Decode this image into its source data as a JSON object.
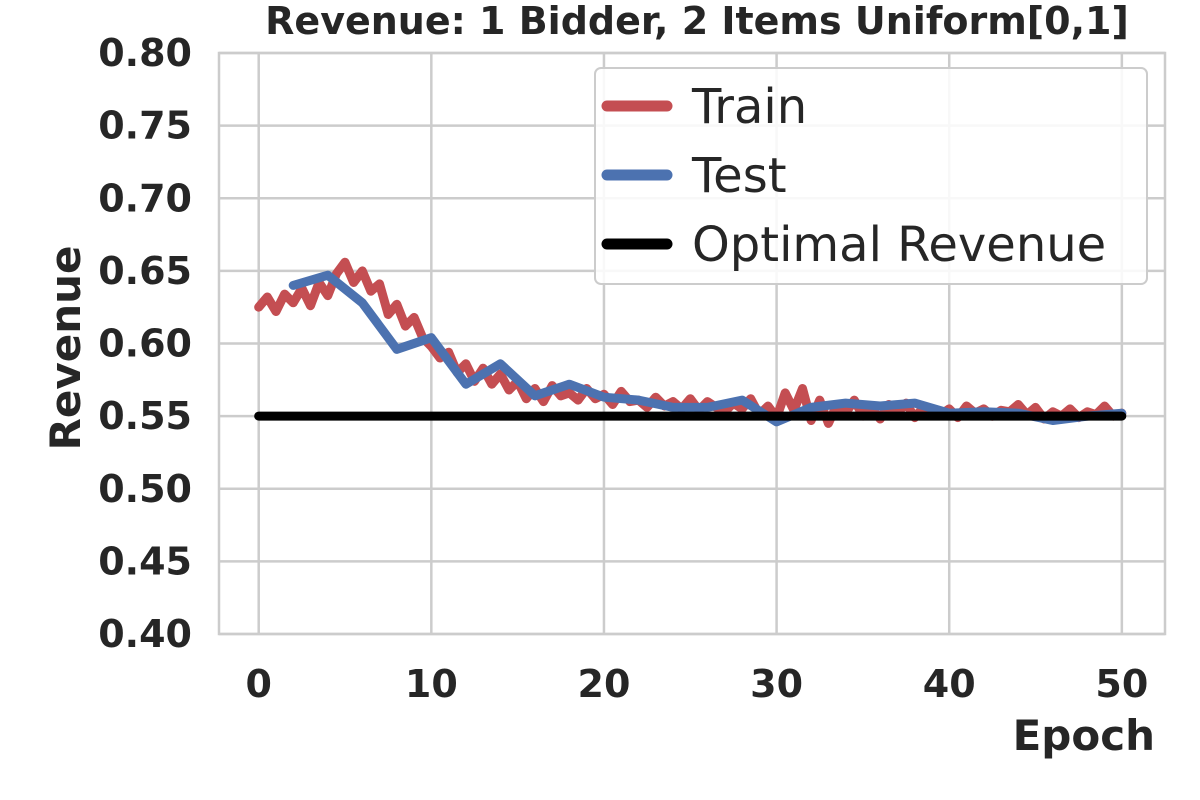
{
  "chart_data": {
    "type": "line",
    "title": "Revenue: 1 Bidder, 2 Items Uniform[0,1]",
    "xlabel": "Epoch",
    "ylabel": "Revenue",
    "xlim": [
      -2.3,
      52.5
    ],
    "ylim": [
      0.4,
      0.8
    ],
    "xticks": [
      "0",
      "10",
      "20",
      "30",
      "40",
      "50"
    ],
    "yticks": [
      "0.40",
      "0.45",
      "0.50",
      "0.55",
      "0.60",
      "0.65",
      "0.70",
      "0.75",
      "0.80"
    ],
    "grid": true,
    "legend_position": "top-right",
    "series": [
      {
        "name": "Train",
        "color": "#c44e52",
        "x": [
          0.0,
          0.5,
          1.0,
          1.5,
          2.0,
          2.5,
          3.0,
          3.5,
          4.0,
          4.5,
          5.0,
          5.5,
          6.0,
          6.5,
          7.0,
          7.5,
          8.0,
          8.5,
          9.0,
          9.5,
          10.0,
          10.5,
          11.0,
          11.5,
          12.0,
          12.5,
          13.0,
          13.5,
          14.0,
          14.5,
          15.0,
          15.5,
          16.0,
          16.5,
          17.0,
          17.5,
          18.0,
          18.5,
          19.0,
          19.5,
          20.0,
          20.5,
          21.0,
          21.5,
          22.0,
          22.5,
          23.0,
          23.5,
          24.0,
          24.5,
          25.0,
          25.5,
          26.0,
          26.5,
          27.0,
          27.5,
          28.0,
          28.5,
          29.0,
          29.5,
          30.0,
          30.5,
          31.0,
          31.5,
          32.0,
          32.5,
          33.0,
          33.5,
          34.0,
          34.5,
          35.0,
          35.5,
          36.0,
          36.5,
          37.0,
          37.5,
          38.0,
          38.5,
          39.0,
          39.5,
          40.0,
          40.5,
          41.0,
          41.5,
          42.0,
          42.5,
          43.0,
          43.5,
          44.0,
          44.5,
          45.0,
          45.5,
          46.0,
          46.5,
          47.0,
          47.5,
          48.0,
          48.5,
          49.0,
          49.5,
          50.0
        ],
        "values": [
          0.625,
          0.632,
          0.622,
          0.634,
          0.628,
          0.638,
          0.626,
          0.642,
          0.633,
          0.648,
          0.656,
          0.642,
          0.65,
          0.636,
          0.641,
          0.62,
          0.627,
          0.612,
          0.618,
          0.604,
          0.598,
          0.59,
          0.594,
          0.58,
          0.586,
          0.574,
          0.583,
          0.572,
          0.579,
          0.568,
          0.574,
          0.562,
          0.569,
          0.56,
          0.571,
          0.564,
          0.566,
          0.561,
          0.569,
          0.562,
          0.565,
          0.558,
          0.567,
          0.56,
          0.561,
          0.556,
          0.563,
          0.557,
          0.56,
          0.555,
          0.562,
          0.554,
          0.56,
          0.556,
          0.553,
          0.559,
          0.555,
          0.562,
          0.551,
          0.557,
          0.549,
          0.566,
          0.554,
          0.569,
          0.547,
          0.561,
          0.545,
          0.558,
          0.552,
          0.561,
          0.55,
          0.556,
          0.548,
          0.558,
          0.552,
          0.559,
          0.549,
          0.556,
          0.553,
          0.551,
          0.555,
          0.549,
          0.557,
          0.552,
          0.555,
          0.55,
          0.554,
          0.553,
          0.558,
          0.551,
          0.556,
          0.548,
          0.553,
          0.55,
          0.555,
          0.549,
          0.553,
          0.551,
          0.557,
          0.55,
          0.552
        ]
      },
      {
        "name": "Test",
        "color": "#4c72b0",
        "x": [
          2,
          4,
          6,
          8,
          10,
          12,
          14,
          16,
          18,
          20,
          22,
          24,
          26,
          28,
          30,
          32,
          34,
          36,
          38,
          40,
          42,
          44,
          46,
          48,
          50
        ],
        "values": [
          0.64,
          0.647,
          0.628,
          0.596,
          0.604,
          0.572,
          0.586,
          0.564,
          0.572,
          0.563,
          0.561,
          0.556,
          0.556,
          0.561,
          0.546,
          0.556,
          0.559,
          0.557,
          0.559,
          0.552,
          0.553,
          0.552,
          0.547,
          0.55,
          0.552
        ]
      },
      {
        "name": "Optimal Revenue",
        "color": "#000000",
        "x": [
          0,
          50
        ],
        "values": [
          0.55,
          0.55
        ]
      }
    ]
  }
}
